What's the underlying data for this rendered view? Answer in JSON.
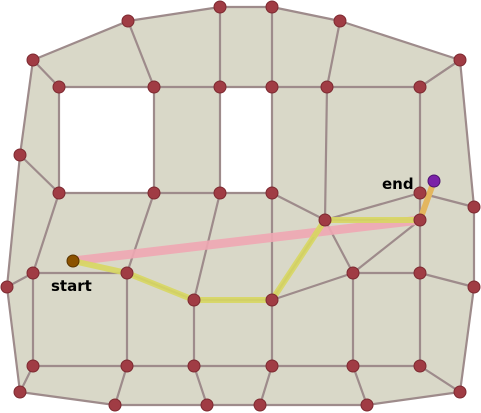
{
  "labels": {
    "start": "start",
    "end": "end"
  },
  "colors": {
    "cell_fill": "#d9d8c8",
    "edge": "#9e8b8b",
    "node": "#a03c44",
    "node_stroke": "#7d2a31",
    "straight_line": "#f0a8b4",
    "path_line": "#d7d760",
    "end_segment": "#e3b65e",
    "start_marker": "#8b5200",
    "end_marker": "#7b22a8"
  }
}
